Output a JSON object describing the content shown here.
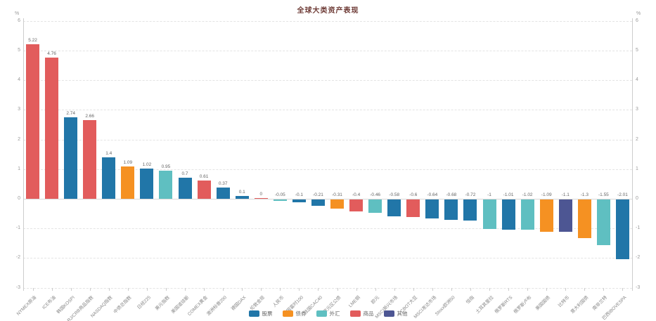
{
  "page_title": "全球大类资产表现",
  "chart_data": {
    "type": "bar",
    "title": "全球大类资产表现",
    "ylabel": "%",
    "ylim": [
      -3,
      6
    ],
    "yticks": [
      6,
      5,
      4,
      3,
      2,
      1,
      0,
      -1,
      -2,
      -3
    ],
    "grid": "dashed horizontal gridlines, y-axis on both left and right sides",
    "legend_position": "bottom-center",
    "legend": [
      {
        "label": "股票",
        "color": "#2176a8"
      },
      {
        "label": "债券",
        "color": "#f59122"
      },
      {
        "label": "外汇",
        "color": "#5fbfc1"
      },
      {
        "label": "商品",
        "color": "#e25c5c"
      },
      {
        "label": "其他",
        "color": "#4d5693"
      }
    ],
    "bars": [
      {
        "name": "NYMEX原油",
        "value": 5.22,
        "label": "5.22",
        "category": "商品"
      },
      {
        "name": "ICE布油",
        "value": 4.76,
        "label": "4.76",
        "category": "商品"
      },
      {
        "name": "韩国KOSPI",
        "value": 2.74,
        "label": "2.74",
        "category": "股票"
      },
      {
        "name": "RJ/CRB商品指数",
        "value": 2.66,
        "label": "2.66",
        "category": "商品"
      },
      {
        "name": "NASDAQ指数",
        "value": 1.4,
        "label": "1.4",
        "category": "股票"
      },
      {
        "name": "中债总指数",
        "value": 1.09,
        "label": "1.09",
        "category": "债券"
      },
      {
        "name": "日经225",
        "value": 1.02,
        "label": "1.02",
        "category": "股票"
      },
      {
        "name": "美元指数",
        "value": 0.95,
        "label": "0.95",
        "category": "外汇"
      },
      {
        "name": "美国道琼斯",
        "value": 0.7,
        "label": "0.7",
        "category": "股票"
      },
      {
        "name": "COMEX黄金",
        "value": 0.61,
        "label": "0.61",
        "category": "商品"
      },
      {
        "name": "澳洲标普200",
        "value": 0.37,
        "label": "0.37",
        "category": "股票"
      },
      {
        "name": "德国DAX",
        "value": 0.1,
        "label": "0.1",
        "category": "股票"
      },
      {
        "name": "伦敦金现",
        "value": 0,
        "label": "0",
        "category": "商品"
      },
      {
        "name": "人民币",
        "value": -0.05,
        "label": "-0.05",
        "category": "外汇"
      },
      {
        "name": "英国富时100",
        "value": -0.1,
        "label": "-0.1",
        "category": "股票"
      },
      {
        "name": "法国CAC40",
        "value": -0.21,
        "label": "-0.21",
        "category": "股票"
      },
      {
        "name": "欧元区公债",
        "value": -0.31,
        "label": "-0.31",
        "category": "债券"
      },
      {
        "name": "LME铜",
        "value": -0.4,
        "label": "-0.4",
        "category": "商品"
      },
      {
        "name": "欧元",
        "value": -0.46,
        "label": "-0.46",
        "category": "外汇"
      },
      {
        "name": "MSCI新兴市场",
        "value": -0.58,
        "label": "-0.58",
        "category": "股票"
      },
      {
        "name": "CBOT大豆",
        "value": -0.6,
        "label": "-0.6",
        "category": "商品"
      },
      {
        "name": "MSCI发达市场",
        "value": -0.64,
        "label": "-0.64",
        "category": "股票"
      },
      {
        "name": "Stoxx欧洲50",
        "value": -0.68,
        "label": "-0.68",
        "category": "股票"
      },
      {
        "name": "恒指",
        "value": -0.72,
        "label": "-0.72",
        "category": "股票"
      },
      {
        "name": "土耳其里拉",
        "value": -1,
        "label": "-1",
        "category": "外汇"
      },
      {
        "name": "俄罗斯RTS",
        "value": -1.01,
        "label": "-1.01",
        "category": "股票"
      },
      {
        "name": "俄罗斯卢布",
        "value": -1.02,
        "label": "-1.02",
        "category": "外汇"
      },
      {
        "name": "美国国债",
        "value": -1.09,
        "label": "-1.09",
        "category": "债券"
      },
      {
        "name": "比特币",
        "value": -1.1,
        "label": "-1.1",
        "category": "其他"
      },
      {
        "name": "意大利国债",
        "value": -1.3,
        "label": "-1.3",
        "category": "债券"
      },
      {
        "name": "南非兰特",
        "value": -1.55,
        "label": "-1.55",
        "category": "外汇"
      },
      {
        "name": "巴西IBOVESPA",
        "value": -2.01,
        "label": "-2.01",
        "category": "股票"
      }
    ]
  }
}
